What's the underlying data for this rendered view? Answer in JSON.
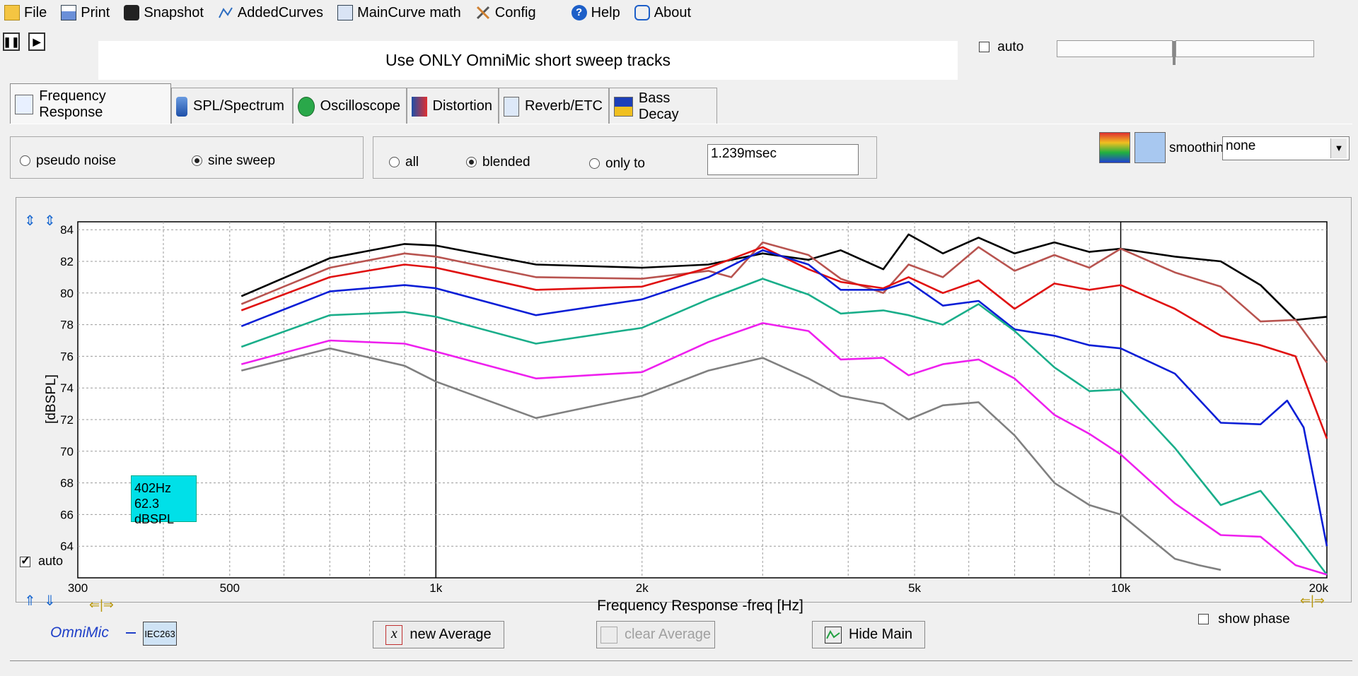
{
  "menu": {
    "items": [
      {
        "key": "file",
        "label": "File",
        "icon": "folder-icon"
      },
      {
        "key": "print",
        "label": "Print",
        "icon": "printer-icon"
      },
      {
        "key": "snapshot",
        "label": "Snapshot",
        "icon": "camera-icon"
      },
      {
        "key": "addedcurves",
        "label": "AddedCurves",
        "icon": "curves-icon"
      },
      {
        "key": "maincurve",
        "label": "MainCurve math",
        "icon": "calculator-icon"
      },
      {
        "key": "config",
        "label": "Config",
        "icon": "tools-icon"
      },
      {
        "key": "help",
        "label": "Help",
        "icon": "help-icon"
      },
      {
        "key": "about",
        "label": "About",
        "icon": "speech-bubble-icon"
      }
    ]
  },
  "banner": {
    "text": "Use ONLY OmniMic short sweep tracks"
  },
  "auto_top": {
    "label": "auto",
    "checked": false
  },
  "tabs": [
    {
      "label": "Frequency Response",
      "active": true
    },
    {
      "label": "SPL/Spectrum",
      "active": false
    },
    {
      "label": "Oscilloscope",
      "active": false
    },
    {
      "label": "Distortion",
      "active": false
    },
    {
      "label": "Reverb/ETC",
      "active": false
    },
    {
      "label": "Bass Decay",
      "active": false
    }
  ],
  "source": {
    "pseudo_noise": "pseudo noise",
    "sine_sweep": "sine sweep",
    "selected": "sine sweep"
  },
  "gating": {
    "all": "all",
    "blended": "blended",
    "only_to": "only to",
    "selected": "blended",
    "time_value": "1.239msec"
  },
  "smoothing": {
    "label": "smoothing",
    "value": "none"
  },
  "readout": {
    "freq": "402Hz",
    "level": "62.3 dBSPL"
  },
  "auto_chart": {
    "label": "auto",
    "checked": true
  },
  "show_phase": {
    "label": "show phase",
    "checked": false
  },
  "buttons": {
    "new_average": "new Average",
    "clear_average": "clear Average",
    "hide_main": "Hide Main"
  },
  "brand": {
    "name": "OmniMic",
    "badge": "IEC263"
  },
  "chart_data": {
    "type": "line",
    "xlabel": "Frequency Response -freq [Hz]",
    "ylabel": "[dBSPL]",
    "xscale": "log",
    "xlim": [
      300,
      20000
    ],
    "ylim": [
      62,
      84.5
    ],
    "x_ticks": [
      300,
      500,
      1000,
      2000,
      5000,
      10000,
      20000
    ],
    "x_tick_labels": [
      "300",
      "500",
      "1k",
      "2k",
      "5k",
      "10k",
      "20k"
    ],
    "y_ticks": [
      64,
      66,
      68,
      70,
      72,
      74,
      76,
      78,
      80,
      82,
      84
    ],
    "y_tick_labels": [
      "64",
      "66",
      "68",
      "70",
      "72",
      "74",
      "76",
      "78",
      "80",
      "82",
      "84"
    ],
    "grid": true,
    "series": [
      {
        "color": "#000000",
        "points": [
          [
            520,
            79.8
          ],
          [
            700,
            82.2
          ],
          [
            900,
            83.1
          ],
          [
            1000,
            83.0
          ],
          [
            1400,
            81.8
          ],
          [
            2000,
            81.6
          ],
          [
            2500,
            81.8
          ],
          [
            3000,
            82.5
          ],
          [
            3500,
            82.1
          ],
          [
            3900,
            82.7
          ],
          [
            4500,
            81.5
          ],
          [
            4900,
            83.7
          ],
          [
            5500,
            82.5
          ],
          [
            6200,
            83.5
          ],
          [
            7000,
            82.5
          ],
          [
            8000,
            83.2
          ],
          [
            9000,
            82.6
          ],
          [
            10000,
            82.8
          ],
          [
            12000,
            82.3
          ],
          [
            14000,
            82.0
          ],
          [
            16000,
            80.5
          ],
          [
            18000,
            78.3
          ],
          [
            20000,
            78.5
          ]
        ]
      },
      {
        "color": "#b85450",
        "points": [
          [
            520,
            79.3
          ],
          [
            700,
            81.6
          ],
          [
            900,
            82.5
          ],
          [
            1000,
            82.3
          ],
          [
            1400,
            81.0
          ],
          [
            2000,
            80.9
          ],
          [
            2500,
            81.4
          ],
          [
            2700,
            81.0
          ],
          [
            3000,
            83.2
          ],
          [
            3500,
            82.4
          ],
          [
            3900,
            80.9
          ],
          [
            4500,
            80.0
          ],
          [
            4900,
            81.8
          ],
          [
            5500,
            81.0
          ],
          [
            6200,
            82.9
          ],
          [
            7000,
            81.4
          ],
          [
            8000,
            82.4
          ],
          [
            9000,
            81.6
          ],
          [
            10000,
            82.8
          ],
          [
            12000,
            81.3
          ],
          [
            14000,
            80.4
          ],
          [
            16000,
            78.2
          ],
          [
            18000,
            78.3
          ],
          [
            20000,
            75.6
          ]
        ]
      },
      {
        "color": "#e01010",
        "points": [
          [
            520,
            78.9
          ],
          [
            700,
            81.0
          ],
          [
            900,
            81.8
          ],
          [
            1000,
            81.6
          ],
          [
            1400,
            80.2
          ],
          [
            2000,
            80.4
          ],
          [
            2500,
            81.6
          ],
          [
            3000,
            82.9
          ],
          [
            3500,
            81.5
          ],
          [
            3900,
            80.7
          ],
          [
            4500,
            80.3
          ],
          [
            4900,
            81.0
          ],
          [
            5500,
            80.0
          ],
          [
            6200,
            80.8
          ],
          [
            7000,
            79.0
          ],
          [
            8000,
            80.6
          ],
          [
            9000,
            80.2
          ],
          [
            10000,
            80.5
          ],
          [
            12000,
            79.0
          ],
          [
            14000,
            77.3
          ],
          [
            16000,
            76.7
          ],
          [
            18000,
            76.0
          ],
          [
            20000,
            70.8
          ]
        ]
      },
      {
        "color": "#0a1ed6",
        "points": [
          [
            520,
            77.9
          ],
          [
            700,
            80.1
          ],
          [
            900,
            80.5
          ],
          [
            1000,
            80.3
          ],
          [
            1400,
            78.6
          ],
          [
            2000,
            79.6
          ],
          [
            2500,
            81.0
          ],
          [
            3000,
            82.7
          ],
          [
            3500,
            81.8
          ],
          [
            3900,
            80.2
          ],
          [
            4500,
            80.2
          ],
          [
            4900,
            80.7
          ],
          [
            5500,
            79.2
          ],
          [
            6200,
            79.5
          ],
          [
            7000,
            77.7
          ],
          [
            8000,
            77.3
          ],
          [
            9000,
            76.7
          ],
          [
            10000,
            76.5
          ],
          [
            12000,
            74.9
          ],
          [
            14000,
            71.8
          ],
          [
            16000,
            71.7
          ],
          [
            17500,
            73.2
          ],
          [
            18500,
            71.5
          ],
          [
            20000,
            64.0
          ]
        ]
      },
      {
        "color": "#1aae8a",
        "points": [
          [
            520,
            76.6
          ],
          [
            700,
            78.6
          ],
          [
            900,
            78.8
          ],
          [
            1000,
            78.5
          ],
          [
            1400,
            76.8
          ],
          [
            2000,
            77.8
          ],
          [
            2500,
            79.6
          ],
          [
            3000,
            80.9
          ],
          [
            3500,
            79.9
          ],
          [
            3900,
            78.7
          ],
          [
            4500,
            78.9
          ],
          [
            4900,
            78.6
          ],
          [
            5500,
            78.0
          ],
          [
            6200,
            79.3
          ],
          [
            7000,
            77.6
          ],
          [
            8000,
            75.3
          ],
          [
            9000,
            73.8
          ],
          [
            10000,
            73.9
          ],
          [
            12000,
            70.2
          ],
          [
            14000,
            66.6
          ],
          [
            16000,
            67.5
          ],
          [
            18000,
            64.8
          ],
          [
            20000,
            62.2
          ]
        ]
      },
      {
        "color": "#ee20ee",
        "points": [
          [
            520,
            75.5
          ],
          [
            700,
            77.0
          ],
          [
            900,
            76.8
          ],
          [
            1000,
            76.3
          ],
          [
            1400,
            74.6
          ],
          [
            2000,
            75.0
          ],
          [
            2500,
            76.9
          ],
          [
            3000,
            78.1
          ],
          [
            3500,
            77.6
          ],
          [
            3900,
            75.8
          ],
          [
            4500,
            75.9
          ],
          [
            4900,
            74.8
          ],
          [
            5500,
            75.5
          ],
          [
            6200,
            75.8
          ],
          [
            7000,
            74.6
          ],
          [
            8000,
            72.3
          ],
          [
            9000,
            71.1
          ],
          [
            10000,
            69.8
          ],
          [
            12000,
            66.7
          ],
          [
            14000,
            64.7
          ],
          [
            16000,
            64.6
          ],
          [
            18000,
            62.8
          ],
          [
            20000,
            62.2
          ]
        ]
      },
      {
        "color": "#808080",
        "points": [
          [
            520,
            75.1
          ],
          [
            700,
            76.5
          ],
          [
            900,
            75.4
          ],
          [
            1000,
            74.4
          ],
          [
            1400,
            72.1
          ],
          [
            2000,
            73.5
          ],
          [
            2500,
            75.1
          ],
          [
            3000,
            75.9
          ],
          [
            3500,
            74.6
          ],
          [
            3900,
            73.5
          ],
          [
            4500,
            73.0
          ],
          [
            4900,
            72.0
          ],
          [
            5500,
            72.9
          ],
          [
            6200,
            73.1
          ],
          [
            7000,
            71.0
          ],
          [
            8000,
            68.0
          ],
          [
            9000,
            66.6
          ],
          [
            10000,
            66.0
          ],
          [
            12000,
            63.2
          ],
          [
            13000,
            62.8
          ],
          [
            14000,
            62.5
          ]
        ]
      }
    ]
  }
}
